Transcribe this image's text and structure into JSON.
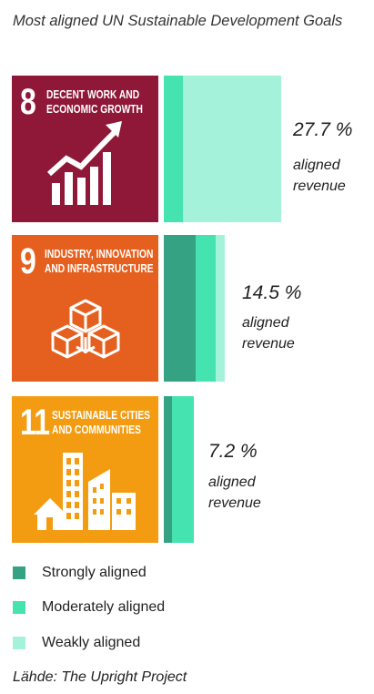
{
  "title": "Most aligned UN Sustainable Development Goals",
  "goals": [
    {
      "number": "8",
      "name": "DECENT WORK AND\nECONOMIC GROWTH",
      "color": "#8f1838",
      "icon": "growth-chart-icon"
    },
    {
      "number": "9",
      "name": "INDUSTRY, INNOVATION\nAND INFRASTRUCTURE",
      "color": "#e5601e",
      "icon": "cubes-icon"
    },
    {
      "number": "11",
      "name": "SUSTAINABLE CITIES\nAND COMMUNITIES",
      "color": "#f39c12",
      "icon": "city-icon"
    }
  ],
  "chart_data": {
    "type": "bar",
    "orientation": "vertical-stacked",
    "categories": [
      "8 DECENT WORK AND ECONOMIC GROWTH",
      "9 INDUSTRY, INNOVATION AND INFRASTRUCTURE",
      "11 SUSTAINABLE CITIES AND COMMUNITIES"
    ],
    "totals": [
      27.7,
      14.5,
      7.2
    ],
    "total_labels": [
      "27.7 %",
      "14.5 %",
      "7.2 %"
    ],
    "value_caption": "aligned\nrevenue",
    "series": [
      {
        "name": "Strongly aligned",
        "color": "#35a383",
        "values": [
          0.0,
          7.5,
          2.0
        ]
      },
      {
        "name": "Moderately aligned",
        "color": "#44e3b0",
        "values": [
          4.5,
          4.8,
          5.2
        ]
      },
      {
        "name": "Weakly aligned",
        "color": "#a5f2da",
        "values": [
          23.2,
          2.2,
          0.0
        ]
      }
    ],
    "legend_position": "bottom-left"
  },
  "source": "Lähde: The Upright Project"
}
